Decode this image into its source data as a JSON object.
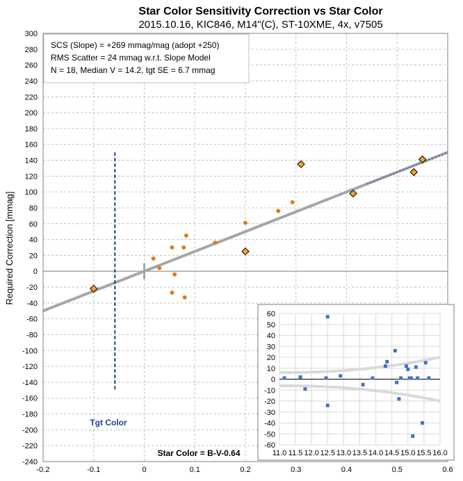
{
  "chart_data": [
    {
      "type": "scatter",
      "title": "Star Color Sensitivity Correction vs Star Color",
      "subtitle": "2015.10.16, KIC846, M14\"(C), ST-10XME, 4x, v7505",
      "xlabel": "Star Color = B-V-0.64",
      "ylabel": "Required Correction [mmag]",
      "xlim": [
        -0.2,
        0.6
      ],
      "ylim": [
        -240,
        300
      ],
      "x_ticks": [
        "-0.2",
        "-0.1",
        "0",
        "0.1",
        "0.2",
        "0.3",
        "0.4",
        "0.5",
        "0.6"
      ],
      "y_ticks": [
        "-240",
        "-220",
        "-200",
        "-180",
        "-160",
        "-140",
        "-120",
        "-100",
        "-80",
        "-60",
        "-40",
        "-20",
        "0",
        "20",
        "40",
        "60",
        "80",
        "100",
        "120",
        "140",
        "160",
        "180",
        "200",
        "220",
        "240",
        "260",
        "280",
        "300"
      ],
      "grid": true,
      "annotation_lines": [
        "SCS (Slope)  = +269 mmag/mag (adopt +250)",
        "RMS Scatter = 24 mmag w.r.t. Slope Model",
        "N = 18,  Median V = 14.2, tgt SE = 6.7 mmag"
      ],
      "target_label": "Tgt Color",
      "target_color_x": -0.058,
      "series": [
        {
          "kind": "circles",
          "color": "#e07b1c",
          "points": [
            [
              0.018,
              16
            ],
            [
              0.03,
              4
            ],
            [
              0.055,
              -27
            ],
            [
              0.055,
              30
            ],
            [
              0.06,
              -4
            ],
            [
              0.078,
              30
            ],
            [
              0.08,
              -33
            ],
            [
              0.083,
              45
            ],
            [
              0.14,
              36
            ],
            [
              0.2,
              61
            ],
            [
              0.265,
              76
            ],
            [
              0.293,
              87
            ]
          ]
        },
        {
          "kind": "diamonds",
          "color": "#f5a02a",
          "points": [
            [
              -0.1,
              -22
            ],
            [
              0.2,
              25
            ],
            [
              0.31,
              135
            ],
            [
              0.413,
              98
            ],
            [
              0.533,
              125
            ],
            [
              0.55,
              141
            ]
          ]
        }
      ],
      "fit_line": {
        "slope_mmag_per_mag": 250,
        "x": [
          -0.2,
          0.6
        ],
        "y": [
          -50,
          150
        ],
        "color": "#a6a6a6"
      },
      "dashed_fit": {
        "x": [
          0.44,
          0.6
        ],
        "y": [
          110,
          150
        ],
        "color": "#2f4f9f"
      }
    },
    {
      "type": "scatter",
      "title": "",
      "xlim": [
        11.0,
        16.0
      ],
      "ylim": [
        -60,
        60
      ],
      "x_ticks": [
        "11.0",
        "11.5",
        "12.0",
        "12.5",
        "13.0",
        "13.5",
        "14.0",
        "14.5",
        "15.0",
        "15.5",
        "16.0"
      ],
      "y_ticks": [
        "-60",
        "-50",
        "-40",
        "-30",
        "-20",
        "-10",
        "0",
        "10",
        "20",
        "30",
        "40",
        "50",
        "60"
      ],
      "grid": true,
      "color": "#4472c4",
      "points": [
        [
          11.15,
          1
        ],
        [
          11.65,
          2
        ],
        [
          11.8,
          -9
        ],
        [
          12.45,
          1
        ],
        [
          12.5,
          57
        ],
        [
          12.5,
          -24
        ],
        [
          12.9,
          3
        ],
        [
          13.6,
          -5
        ],
        [
          13.9,
          1
        ],
        [
          14.3,
          12
        ],
        [
          14.35,
          16
        ],
        [
          14.6,
          26
        ],
        [
          14.65,
          -3
        ],
        [
          14.72,
          -18
        ],
        [
          14.78,
          1
        ],
        [
          14.95,
          12
        ],
        [
          15.0,
          9
        ],
        [
          15.05,
          1
        ],
        [
          15.1,
          1
        ],
        [
          15.15,
          -52
        ],
        [
          15.25,
          11
        ],
        [
          15.3,
          1
        ],
        [
          15.45,
          -40
        ],
        [
          15.55,
          15
        ],
        [
          15.65,
          1
        ]
      ],
      "envelope_color": "#d9d9d9"
    }
  ]
}
